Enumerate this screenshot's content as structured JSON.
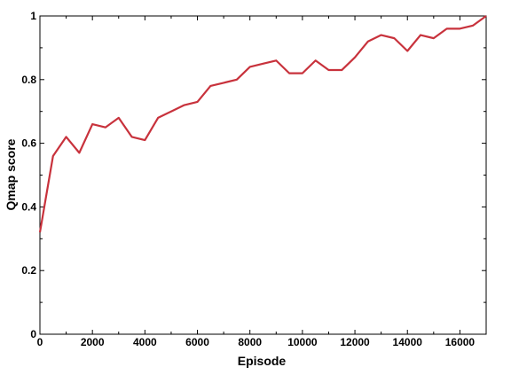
{
  "chart_data": {
    "type": "line",
    "xlabel": "Episode",
    "ylabel": "Qmap score",
    "xlim": [
      0,
      17000
    ],
    "ylim": [
      0,
      1
    ],
    "xticks": [
      0,
      2000,
      4000,
      6000,
      8000,
      10000,
      12000,
      14000,
      16000
    ],
    "yticks": [
      0,
      0.2,
      0.4,
      0.6,
      0.8,
      1
    ],
    "xtick_labels": [
      "0",
      "2000",
      "4000",
      "6000",
      "8000",
      "10000",
      "12000",
      "14000",
      "16000"
    ],
    "ytick_labels": [
      "0",
      "0.2",
      "0.4",
      "0.6",
      "0.8",
      "1"
    ],
    "grid": false,
    "series": [
      {
        "color": "#c8323c",
        "x": [
          0,
          500,
          1000,
          1500,
          2000,
          2500,
          3000,
          3500,
          4000,
          4500,
          5000,
          5500,
          6000,
          6500,
          7000,
          7500,
          8000,
          8500,
          9000,
          9500,
          10000,
          10500,
          11000,
          11500,
          12000,
          12500,
          13000,
          13500,
          14000,
          14500,
          15000,
          15500,
          16000,
          16500,
          17000
        ],
        "y": [
          0.32,
          0.56,
          0.62,
          0.57,
          0.66,
          0.65,
          0.68,
          0.62,
          0.61,
          0.68,
          0.7,
          0.72,
          0.73,
          0.78,
          0.79,
          0.8,
          0.84,
          0.85,
          0.86,
          0.82,
          0.82,
          0.86,
          0.83,
          0.83,
          0.87,
          0.92,
          0.94,
          0.93,
          0.89,
          0.94,
          0.93,
          0.96,
          0.96,
          0.97,
          1.0
        ]
      }
    ]
  }
}
